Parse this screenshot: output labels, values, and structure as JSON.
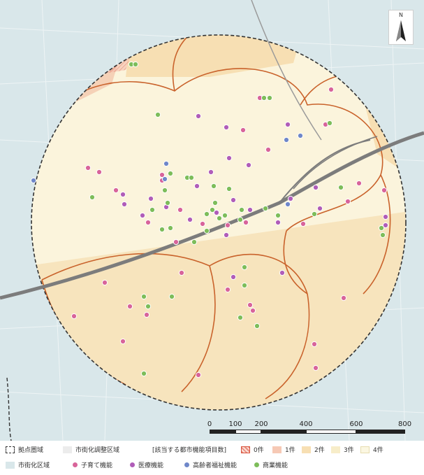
{
  "north_arrow": {
    "label": "N",
    "icon": "north-arrow-icon"
  },
  "scale": {
    "ticks": [
      "0",
      "100",
      "200",
      "400",
      "600",
      "800 m"
    ],
    "tick_values_m": [
      0,
      100,
      200,
      400,
      600,
      800
    ]
  },
  "legend": {
    "core_area": "拠点圏域",
    "urbanization_control_area": "市街化調整区域",
    "urbanization_area": "市街化区域",
    "count_title": "[該当する都市機能項目数]",
    "count_items": [
      {
        "label": "0件",
        "color": "#e88f80",
        "hatched": true
      },
      {
        "label": "1件",
        "color": "#f6c9b5",
        "hatched": false
      },
      {
        "label": "2件",
        "color": "#f7dfb3",
        "hatched": false
      },
      {
        "label": "3件",
        "color": "#f7edc9",
        "hatched": false
      },
      {
        "label": "4件",
        "color": "#fbf7e2",
        "hatched": false
      }
    ],
    "facilities": [
      {
        "key": "childcare",
        "label": "子育て機能",
        "color": "#d8649a"
      },
      {
        "key": "medical",
        "label": "医療機能",
        "color": "#b05db8"
      },
      {
        "key": "elderly",
        "label": "高齢者福祉機能",
        "color": "#6f87c9"
      },
      {
        "key": "commercial",
        "label": "商業機能",
        "color": "#7dbd5a"
      }
    ]
  },
  "colors": {
    "urban_bg": "#d9e7ea",
    "circle_fill": "#fbf4dc",
    "circle_south": "#f8e8c2",
    "boundary": "#c9622b",
    "railway": "#7c7c7c"
  },
  "points": {
    "childcare": [
      [
        372,
        140
      ],
      [
        474,
        128
      ],
      [
        466,
        178
      ],
      [
        348,
        186
      ],
      [
        384,
        214
      ],
      [
        126,
        240
      ],
      [
        142,
        246
      ],
      [
        232,
        258
      ],
      [
        166,
        272
      ],
      [
        258,
        300
      ],
      [
        290,
        320
      ],
      [
        252,
        346
      ],
      [
        212,
        318
      ],
      [
        326,
        322
      ],
      [
        352,
        318
      ],
      [
        232,
        250
      ],
      [
        260,
        390
      ],
      [
        150,
        404
      ],
      [
        186,
        438
      ],
      [
        210,
        450
      ],
      [
        106,
        452
      ],
      [
        176,
        488
      ],
      [
        284,
        536
      ],
      [
        358,
        436
      ],
      [
        362,
        444
      ],
      [
        326,
        414
      ],
      [
        492,
        426
      ],
      [
        450,
        492
      ],
      [
        452,
        526
      ],
      [
        514,
        262
      ],
      [
        550,
        272
      ],
      [
        498,
        288
      ],
      [
        434,
        320
      ]
    ],
    "medical": [
      [
        284,
        166
      ],
      [
        324,
        182
      ],
      [
        412,
        178
      ],
      [
        328,
        226
      ],
      [
        356,
        236
      ],
      [
        176,
        278
      ],
      [
        178,
        292
      ],
      [
        204,
        308
      ],
      [
        216,
        284
      ],
      [
        238,
        296
      ],
      [
        272,
        314
      ],
      [
        282,
        266
      ],
      [
        302,
        246
      ],
      [
        334,
        286
      ],
      [
        310,
        304
      ],
      [
        358,
        300
      ],
      [
        398,
        318
      ],
      [
        452,
        268
      ],
      [
        458,
        298
      ],
      [
        416,
        284
      ],
      [
        404,
        390
      ],
      [
        334,
        396
      ],
      [
        324,
        336
      ],
      [
        552,
        310
      ],
      [
        552,
        322
      ]
    ],
    "elderly": [
      [
        238,
        234
      ],
      [
        236,
        256
      ],
      [
        410,
        200
      ],
      [
        430,
        194
      ],
      [
        48,
        258
      ],
      [
        412,
        292
      ]
    ],
    "commercial": [
      [
        188,
        92
      ],
      [
        194,
        92
      ],
      [
        378,
        140
      ],
      [
        386,
        140
      ],
      [
        226,
        164
      ],
      [
        472,
        176
      ],
      [
        268,
        254
      ],
      [
        274,
        254
      ],
      [
        132,
        282
      ],
      [
        306,
        266
      ],
      [
        328,
        270
      ],
      [
        244,
        248
      ],
      [
        236,
        272
      ],
      [
        218,
        300
      ],
      [
        232,
        328
      ],
      [
        244,
        326
      ],
      [
        296,
        306
      ],
      [
        304,
        300
      ],
      [
        314,
        312
      ],
      [
        322,
        308
      ],
      [
        344,
        314
      ],
      [
        380,
        298
      ],
      [
        398,
        308
      ],
      [
        450,
        306
      ],
      [
        488,
        268
      ],
      [
        546,
        326
      ],
      [
        548,
        336
      ],
      [
        296,
        330
      ],
      [
        206,
        424
      ],
      [
        212,
        438
      ],
      [
        246,
        424
      ],
      [
        350,
        382
      ],
      [
        350,
        408
      ],
      [
        344,
        454
      ],
      [
        368,
        466
      ],
      [
        206,
        534
      ],
      [
        278,
        346
      ],
      [
        308,
        290
      ],
      [
        346,
        300
      ],
      [
        240,
        290
      ]
    ]
  }
}
